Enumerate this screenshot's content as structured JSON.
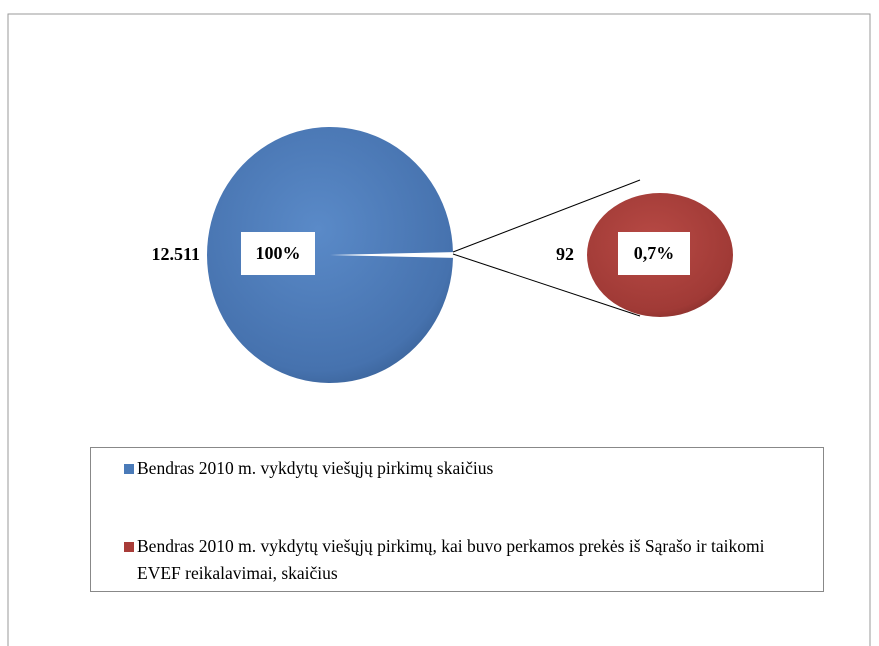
{
  "chart_data": {
    "type": "pie",
    "categories": [
      "Bendras 2010 m. vykdytų viešųjų pirkimų skaičius",
      "Bendras 2010 m. vykdytų viešųjų pirkimų, kai buvo perkamos prekės iš Sąrašo ir taikomi EVEF reikalavimai, skaičius"
    ],
    "values": [
      12511,
      92
    ],
    "value_labels": [
      "12.511",
      "92"
    ],
    "percent_labels": [
      "100%",
      "0,7%"
    ],
    "colors": [
      "#4a7ab8",
      "#a83c38"
    ]
  }
}
